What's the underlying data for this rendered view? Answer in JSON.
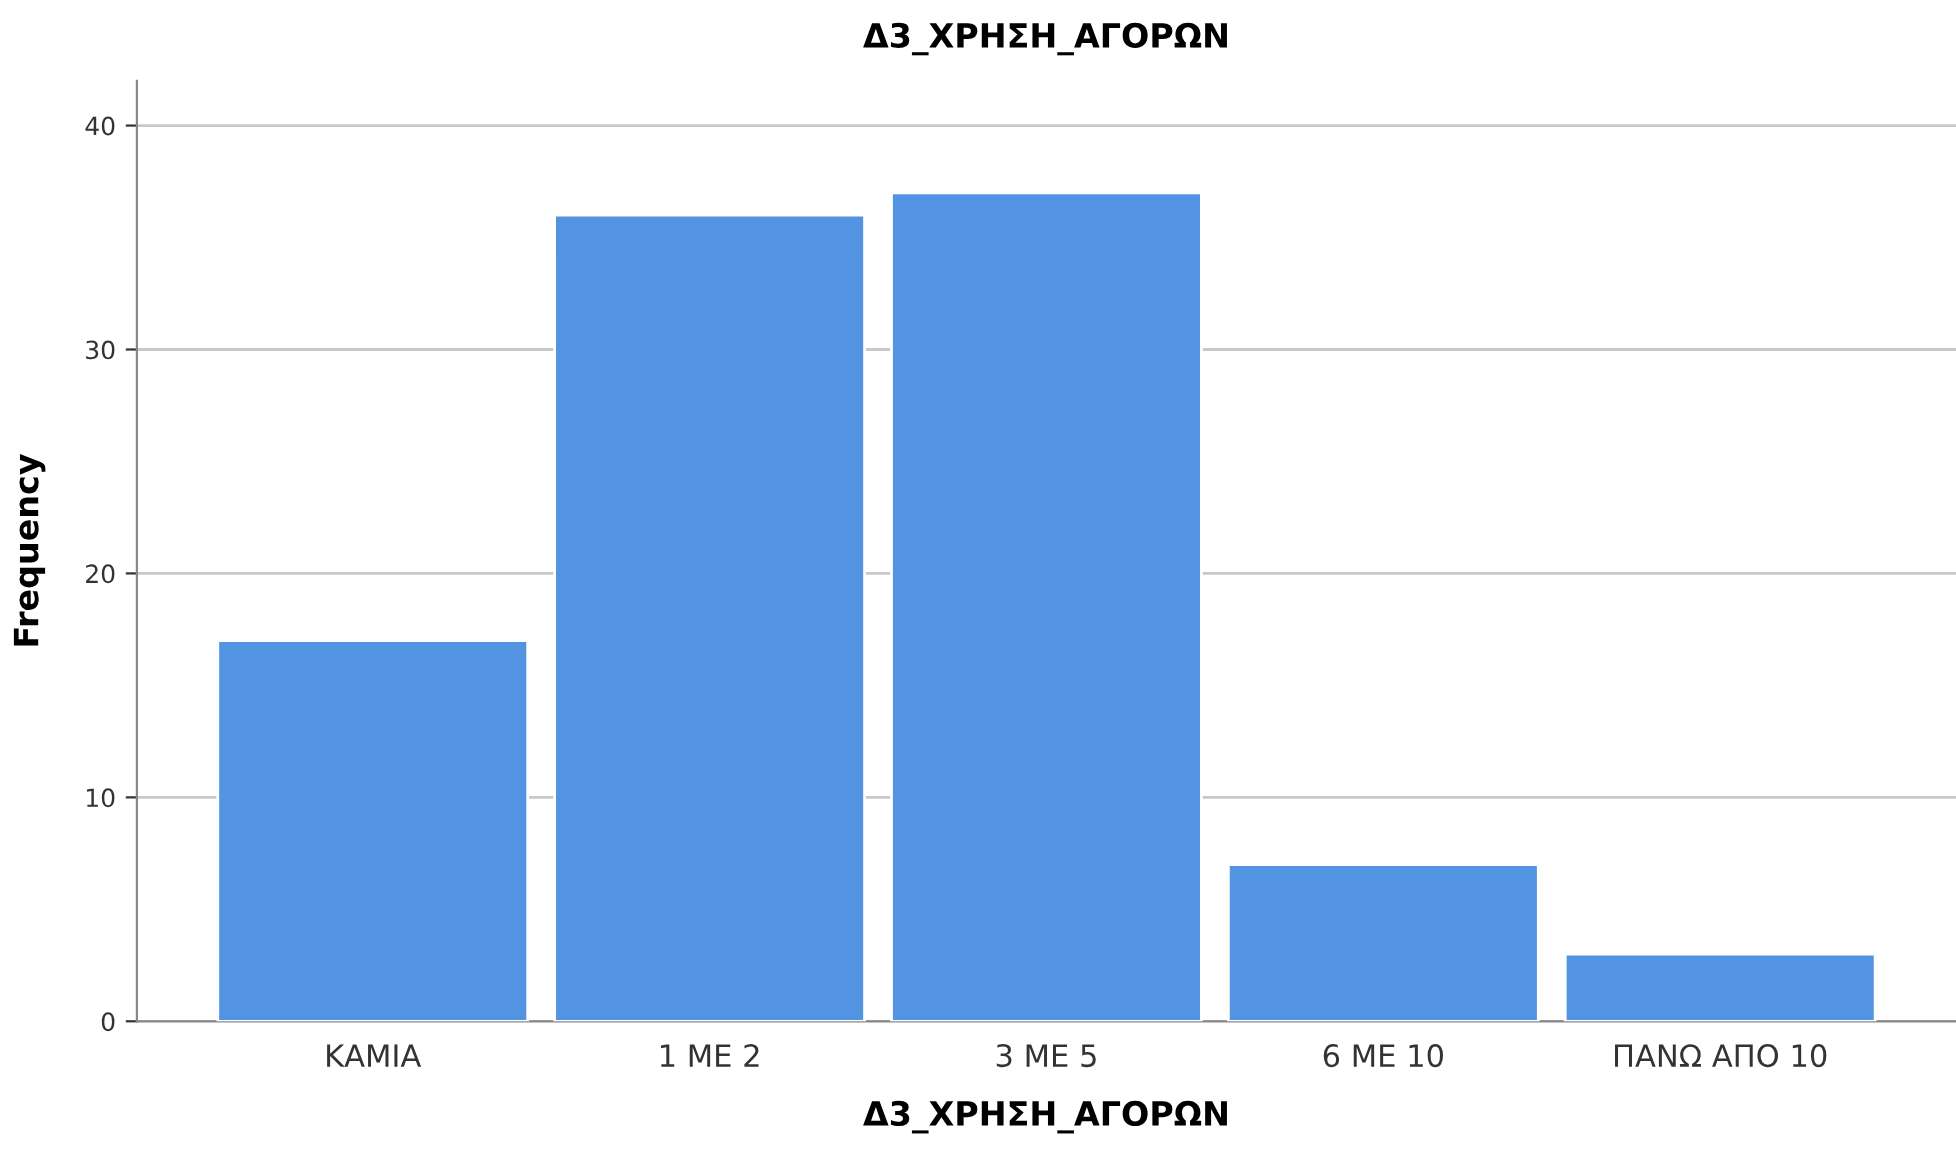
{
  "chart_data": {
    "type": "bar",
    "title": "Δ3_ΧΡΗΣΗ_ΑΓΟΡΩΝ",
    "xlabel": "Δ3_ΧΡΗΣΗ_ΑΓΟΡΩΝ",
    "ylabel": "Frequency",
    "categories": [
      "ΚΑΜΙΑ",
      "1 ΜΕ 2",
      "3 ΜΕ 5",
      "6 ΜΕ 10",
      "ΠΑΝΩ ΑΠΟ 10"
    ],
    "values": [
      17,
      36,
      37,
      7,
      3
    ],
    "color": "#5294e2",
    "ylim": [
      0,
      42
    ],
    "yticks": [
      0,
      10,
      20,
      30,
      40
    ],
    "grid": "y"
  }
}
